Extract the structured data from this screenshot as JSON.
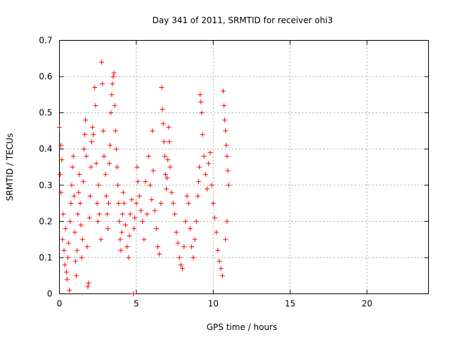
{
  "chart_data": {
    "type": "scatter",
    "title": "Day 341 of 2011, SRMTID for receiver ohi3",
    "xlabel": "GPS time / hours",
    "ylabel": "SRMTID / TECUs",
    "xlim": [
      0,
      24
    ],
    "ylim": [
      0,
      0.7
    ],
    "xticks": [
      0,
      5,
      10,
      15,
      20
    ],
    "xtick_labels": [
      "0",
      "5",
      "10",
      "15",
      "20"
    ],
    "yticks": [
      0,
      0.1,
      0.2,
      0.3,
      0.4,
      0.5,
      0.6,
      0.7
    ],
    "ytick_labels": [
      "0",
      "0.1",
      "0.2",
      "0.3",
      "0.4",
      "0.5",
      "0.6",
      "0.7"
    ],
    "grid": true,
    "marker": "plus",
    "color": "#ff0000",
    "series": [
      {
        "name": "ohi3",
        "points": [
          [
            0.0,
            0.46
          ],
          [
            0.05,
            0.33
          ],
          [
            0.1,
            0.41
          ],
          [
            0.1,
            0.28
          ],
          [
            0.15,
            0.37
          ],
          [
            0.2,
            0.15
          ],
          [
            0.25,
            0.22
          ],
          [
            0.3,
            0.12
          ],
          [
            0.35,
            0.08
          ],
          [
            0.4,
            0.18
          ],
          [
            0.45,
            0.06
          ],
          [
            0.5,
            0.04
          ],
          [
            0.55,
            0.1
          ],
          [
            0.6,
            0.14
          ],
          [
            0.65,
            0.01
          ],
          [
            0.7,
            0.2
          ],
          [
            0.75,
            0.25
          ],
          [
            0.8,
            0.3
          ],
          [
            0.85,
            0.35
          ],
          [
            0.9,
            0.38
          ],
          [
            0.95,
            0.27
          ],
          [
            1.0,
            0.17
          ],
          [
            1.05,
            0.09
          ],
          [
            1.1,
            0.05
          ],
          [
            1.15,
            0.12
          ],
          [
            1.2,
            0.22
          ],
          [
            1.25,
            0.28
          ],
          [
            1.3,
            0.33
          ],
          [
            1.35,
            0.25
          ],
          [
            1.4,
            0.19
          ],
          [
            1.45,
            0.1
          ],
          [
            1.5,
            0.15
          ],
          [
            1.55,
            0.31
          ],
          [
            1.6,
            0.4
          ],
          [
            1.65,
            0.44
          ],
          [
            1.7,
            0.48
          ],
          [
            1.75,
            0.38
          ],
          [
            1.8,
            0.13
          ],
          [
            1.85,
            0.02
          ],
          [
            1.9,
            0.03
          ],
          [
            1.95,
            0.21
          ],
          [
            2.0,
            0.27
          ],
          [
            2.05,
            0.35
          ],
          [
            2.1,
            0.42
          ],
          [
            2.15,
            0.46
          ],
          [
            2.2,
            0.44
          ],
          [
            2.3,
            0.57
          ],
          [
            2.35,
            0.52
          ],
          [
            2.4,
            0.36
          ],
          [
            2.45,
            0.25
          ],
          [
            2.5,
            0.2
          ],
          [
            2.55,
            0.3
          ],
          [
            2.6,
            0.22
          ],
          [
            2.7,
            0.15
          ],
          [
            2.75,
            0.64
          ],
          [
            2.8,
            0.58
          ],
          [
            2.85,
            0.45
          ],
          [
            2.9,
            0.38
          ],
          [
            3.0,
            0.33
          ],
          [
            3.05,
            0.27
          ],
          [
            3.1,
            0.22
          ],
          [
            3.15,
            0.18
          ],
          [
            3.2,
            0.25
          ],
          [
            3.25,
            0.36
          ],
          [
            3.3,
            0.41
          ],
          [
            3.35,
            0.5
          ],
          [
            3.4,
            0.55
          ],
          [
            3.45,
            0.58
          ],
          [
            3.5,
            0.6
          ],
          [
            3.55,
            0.61
          ],
          [
            3.6,
            0.52
          ],
          [
            3.65,
            0.45
          ],
          [
            3.7,
            0.4
          ],
          [
            3.75,
            0.35
          ],
          [
            3.8,
            0.3
          ],
          [
            3.85,
            0.25
          ],
          [
            3.9,
            0.2
          ],
          [
            3.95,
            0.15
          ],
          [
            4.0,
            0.12
          ],
          [
            4.05,
            0.17
          ],
          [
            4.1,
            0.22
          ],
          [
            4.15,
            0.28
          ],
          [
            4.2,
            0.25
          ],
          [
            4.3,
            0.19
          ],
          [
            4.4,
            0.13
          ],
          [
            4.5,
            0.1
          ],
          [
            4.55,
            0.16
          ],
          [
            4.6,
            0.22
          ],
          [
            4.7,
            0.26
          ],
          [
            4.8,
            0.0
          ],
          [
            4.85,
            0.18
          ],
          [
            4.9,
            0.21
          ],
          [
            5.0,
            0.25
          ],
          [
            5.05,
            0.35
          ],
          [
            5.1,
            0.31
          ],
          [
            5.2,
            0.27
          ],
          [
            5.3,
            0.23
          ],
          [
            5.4,
            0.2
          ],
          [
            5.5,
            0.15
          ],
          [
            5.6,
            0.31
          ],
          [
            5.7,
            0.22
          ],
          [
            5.8,
            0.38
          ],
          [
            5.9,
            0.3
          ],
          [
            6.0,
            0.26
          ],
          [
            6.05,
            0.45
          ],
          [
            6.1,
            0.34
          ],
          [
            6.2,
            0.23
          ],
          [
            6.3,
            0.18
          ],
          [
            6.4,
            0.13
          ],
          [
            6.5,
            0.11
          ],
          [
            6.6,
            0.25
          ],
          [
            6.65,
            0.57
          ],
          [
            6.7,
            0.51
          ],
          [
            6.75,
            0.47
          ],
          [
            6.8,
            0.42
          ],
          [
            6.85,
            0.38
          ],
          [
            6.9,
            0.33
          ],
          [
            6.95,
            0.29
          ],
          [
            7.0,
            0.32
          ],
          [
            7.05,
            0.37
          ],
          [
            7.1,
            0.46
          ],
          [
            7.15,
            0.42
          ],
          [
            7.2,
            0.35
          ],
          [
            7.3,
            0.28
          ],
          [
            7.4,
            0.25
          ],
          [
            7.5,
            0.22
          ],
          [
            7.6,
            0.17
          ],
          [
            7.7,
            0.14
          ],
          [
            7.8,
            0.1
          ],
          [
            7.9,
            0.08
          ],
          [
            8.0,
            0.07
          ],
          [
            8.1,
            0.13
          ],
          [
            8.2,
            0.2
          ],
          [
            8.3,
            0.27
          ],
          [
            8.4,
            0.25
          ],
          [
            8.5,
            0.18
          ],
          [
            8.6,
            0.13
          ],
          [
            8.7,
            0.1
          ],
          [
            8.8,
            0.15
          ],
          [
            8.9,
            0.2
          ],
          [
            9.0,
            0.27
          ],
          [
            9.05,
            0.31
          ],
          [
            9.1,
            0.35
          ],
          [
            9.15,
            0.55
          ],
          [
            9.2,
            0.53
          ],
          [
            9.25,
            0.5
          ],
          [
            9.3,
            0.44
          ],
          [
            9.4,
            0.38
          ],
          [
            9.5,
            0.33
          ],
          [
            9.6,
            0.29
          ],
          [
            9.7,
            0.36
          ],
          [
            9.8,
            0.39
          ],
          [
            9.9,
            0.3
          ],
          [
            10.0,
            0.25
          ],
          [
            10.1,
            0.21
          ],
          [
            10.2,
            0.17
          ],
          [
            10.3,
            0.12
          ],
          [
            10.4,
            0.09
          ],
          [
            10.5,
            0.07
          ],
          [
            10.6,
            0.05
          ],
          [
            10.65,
            0.56
          ],
          [
            10.7,
            0.52
          ],
          [
            10.75,
            0.48
          ],
          [
            10.8,
            0.45
          ],
          [
            10.85,
            0.41
          ],
          [
            10.9,
            0.38
          ],
          [
            10.95,
            0.34
          ],
          [
            11.0,
            0.3
          ],
          [
            10.8,
            0.15
          ],
          [
            10.9,
            0.2
          ]
        ]
      }
    ]
  }
}
